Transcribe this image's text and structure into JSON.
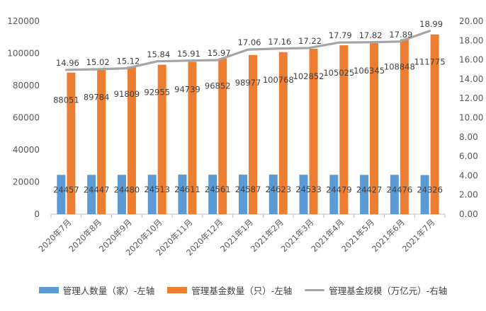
{
  "chart_data": {
    "type": "bar",
    "categories": [
      "2020年7月",
      "2020年8月",
      "2020年9月",
      "2020年10月",
      "2020年11月",
      "2020年12月",
      "2021年1月",
      "2021年2月",
      "2021年3月",
      "2021年4月",
      "2021年5月",
      "2021年6月",
      "2021年7月"
    ],
    "series": [
      {
        "name": "管理人数量（家）-左轴",
        "type": "bar",
        "axis": "left",
        "color": "#5b9bd5",
        "values": [
          24457,
          24447,
          24480,
          24513,
          24611,
          24561,
          24587,
          24623,
          24533,
          24479,
          24427,
          24476,
          24326
        ]
      },
      {
        "name": "管理基金数量（只）-左轴",
        "type": "bar",
        "axis": "left",
        "color": "#ed7d31",
        "values": [
          88051,
          89784,
          91809,
          92955,
          94739,
          96852,
          98977,
          100768,
          102852,
          105025,
          106345,
          108848,
          111775
        ]
      },
      {
        "name": "管理基金规模（万亿元）-右轴",
        "type": "line",
        "axis": "right",
        "color": "#a5a5a5",
        "values": [
          14.96,
          15.02,
          15.12,
          15.84,
          15.91,
          15.97,
          17.06,
          17.16,
          17.22,
          17.79,
          17.82,
          17.89,
          18.99
        ]
      }
    ],
    "left_axis": {
      "min": 0,
      "max": 120000,
      "ticks": [
        "0",
        "20000",
        "40000",
        "60000",
        "80000",
        "100000",
        "120000"
      ]
    },
    "right_axis": {
      "min": 0,
      "max": 20,
      "ticks": [
        "0.00",
        "2.00",
        "4.00",
        "6.00",
        "8.00",
        "10.00",
        "12.00",
        "14.00",
        "16.00",
        "18.00",
        "20.00"
      ]
    },
    "line_labels": [
      "14.96",
      "15.02",
      "15.12",
      "15.84",
      "15.91",
      "15.97",
      "17.06",
      "17.16",
      "17.22",
      "17.79",
      "17.82",
      "17.89",
      "18.99"
    ],
    "grid": false,
    "legend_position": "bottom"
  }
}
